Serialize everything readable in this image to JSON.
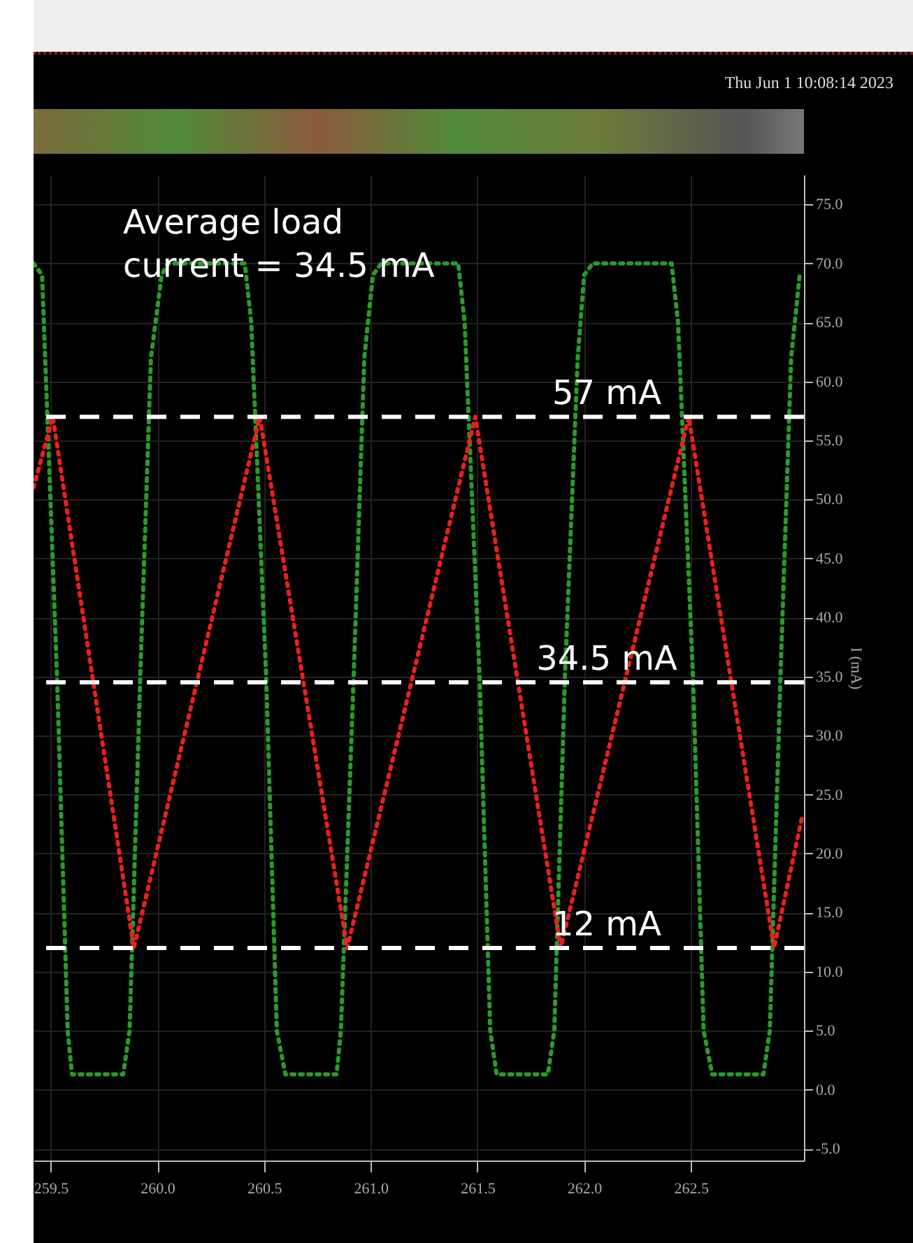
{
  "chart_data": {
    "type": "line",
    "annotations": [
      "Thu Jun 1 10:08:14 2023",
      "Average load\ncurrent = 34.5 mA"
    ],
    "ylabel": "I (mA)",
    "xlim": [
      259.42,
      263.03
    ],
    "ylim": [
      -6,
      77.5
    ],
    "xticks": [
      259.5,
      {
        "value": 260,
        "label": "260.0"
      },
      260.5,
      {
        "value": 261,
        "label": "261.0"
      },
      261.5,
      {
        "value": 262,
        "label": "262.0"
      },
      262.5
    ],
    "yticks": [
      {
        "value": -5,
        "label": "-5.0"
      },
      {
        "value": 0,
        "label": "0.0"
      },
      {
        "value": 5,
        "label": "5.0"
      },
      {
        "value": 10,
        "label": "10.0"
      },
      {
        "value": 15,
        "label": "15.0"
      },
      {
        "value": 20,
        "label": "20.0"
      },
      {
        "value": 25,
        "label": "25.0"
      },
      {
        "value": 30,
        "label": "30.0"
      },
      {
        "value": 35,
        "label": "35.0"
      },
      {
        "value": 40,
        "label": "40.0"
      },
      {
        "value": 45,
        "label": "45.0"
      },
      {
        "value": 50,
        "label": "50.0"
      },
      {
        "value": 55,
        "label": "55.0"
      },
      {
        "value": 60,
        "label": "60.0"
      },
      {
        "value": 65,
        "label": "65.0"
      },
      {
        "value": 70,
        "label": "70.0"
      },
      {
        "value": 75,
        "label": "75.0"
      }
    ],
    "grid": true,
    "line_style": "dotted",
    "series": [
      {
        "color": "#2a9a2a",
        "x": [
          259.42,
          259.46,
          259.53,
          259.58,
          259.6,
          259.84,
          259.87,
          259.92,
          259.97,
          260.02,
          260.05,
          260.41,
          260.44,
          260.51,
          260.56,
          260.6,
          260.84,
          260.86,
          260.92,
          260.97,
          261.01,
          261.05,
          261.41,
          261.44,
          261.51,
          261.56,
          261.59,
          261.83,
          261.86,
          261.91,
          261.97,
          262.0,
          262.04,
          262.41,
          262.44,
          262.51,
          262.56,
          262.6,
          262.84,
          262.87,
          262.92,
          262.97,
          263.01
        ],
        "values": [
          70,
          69,
          35,
          5,
          1.3,
          1.3,
          5,
          35,
          62,
          69,
          70,
          70,
          65,
          35,
          5,
          1.3,
          1.3,
          5,
          35,
          62,
          69,
          70,
          70,
          65,
          35,
          5,
          1.3,
          1.3,
          5,
          35,
          62,
          69,
          70,
          70,
          65,
          35,
          5,
          1.3,
          1.3,
          5,
          35,
          62,
          69
        ]
      },
      {
        "color": "#e8201e",
        "x": [
          259.42,
          259.51,
          259.89,
          260.48,
          260.89,
          261.49,
          261.89,
          262.49,
          262.89,
          263.02
        ],
        "values": [
          51,
          57,
          12,
          57,
          12,
          57,
          12,
          57,
          12,
          23
        ]
      }
    ],
    "ref_lines": [
      {
        "axis": "y",
        "value": 57,
        "label": "57 mA",
        "color": "#ffffff",
        "line_style": "dashed"
      },
      {
        "axis": "y",
        "value": 34.5,
        "label": "34.5 mA",
        "color": "#ffffff",
        "line_style": "dashed"
      },
      {
        "axis": "y",
        "value": 12,
        "label": "12 mA",
        "color": "#ffffff",
        "line_style": "dashed"
      }
    ]
  }
}
